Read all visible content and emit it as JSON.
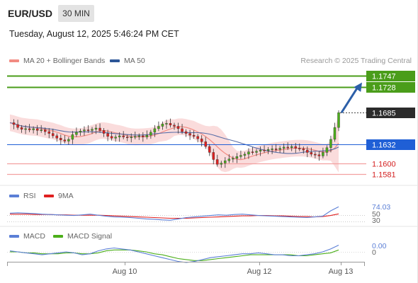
{
  "header": {
    "symbol": "EUR/USD",
    "interval": "30 MIN",
    "datetime": "Tuesday, August 12, 2025 5:46:24 PM CET",
    "copyright": "Research © 2025 Trading Central"
  },
  "legend": {
    "main": [
      {
        "label": "MA 20 + Bollinger Bands",
        "color": "#f28b82"
      },
      {
        "label": "MA 50",
        "color": "#2c5697"
      }
    ],
    "rsi": [
      {
        "label": "RSI",
        "color": "#5b7fd6"
      },
      {
        "label": "9MA",
        "color": "#e02020"
      }
    ],
    "macd": [
      {
        "label": "MACD",
        "color": "#5b7fd6"
      },
      {
        "label": "MACD Signal",
        "color": "#4caf1a"
      }
    ]
  },
  "colors": {
    "bullish": "#4caf1a",
    "bearish": "#e02020",
    "bollinger_fill": "#f9d6d6",
    "ma20": "#f28b82",
    "ma50": "#5a6fa8",
    "resistance": "#4a9d1a",
    "support": "#1f5fd6",
    "support_weak": "#f2a0a0",
    "arrow": "#2c5fa8"
  },
  "chart_data": [
    {
      "type": "candlestick",
      "title": "EUR/USD",
      "x_tick_labels": [
        "Aug 10",
        "Aug 12",
        "Aug 13"
      ],
      "ylim": [
        1.1572,
        1.1758
      ],
      "current_price": "1.1685",
      "levels": [
        {
          "value": 1.1747,
          "label": "1.1747",
          "kind": "resistance"
        },
        {
          "value": 1.1728,
          "label": "1.1728",
          "kind": "resistance"
        },
        {
          "value": 1.1632,
          "label": "1.1632",
          "kind": "pivot"
        },
        {
          "value": 1.16,
          "label": "1.1600",
          "kind": "support"
        },
        {
          "value": 1.1581,
          "label": "1.1581",
          "kind": "support"
        }
      ],
      "projection": {
        "from": 1.1685,
        "to": 1.1743
      },
      "close_series": [
        1.1668,
        1.1665,
        1.166,
        1.1657,
        1.1658,
        1.1656,
        1.1658,
        1.1655,
        1.1656,
        1.1653,
        1.165,
        1.1646,
        1.1642,
        1.1639,
        1.1637,
        1.164,
        1.1648,
        1.1652,
        1.1654,
        1.1656,
        1.1655,
        1.1657,
        1.1659,
        1.1655,
        1.165,
        1.1645,
        1.1642,
        1.1644,
        1.1646,
        1.1644,
        1.1643,
        1.1644,
        1.1645,
        1.1646,
        1.1644,
        1.1647,
        1.1652,
        1.1658,
        1.1662,
        1.1666,
        1.1667,
        1.1664,
        1.1662,
        1.1658,
        1.1653,
        1.165,
        1.1647,
        1.1645,
        1.1641,
        1.1636,
        1.1628,
        1.1618,
        1.1606,
        1.1598,
        1.16,
        1.1604,
        1.1607,
        1.1608,
        1.1611,
        1.1613,
        1.1615,
        1.1619,
        1.1618,
        1.162,
        1.1622,
        1.1621,
        1.1623,
        1.1624,
        1.1623,
        1.1625,
        1.1627,
        1.1626,
        1.1628,
        1.1625,
        1.1624,
        1.1622,
        1.1618,
        1.1615,
        1.1614,
        1.1612,
        1.1618,
        1.1626,
        1.164,
        1.166,
        1.1685
      ]
    },
    {
      "type": "line",
      "title": "RSI",
      "ylim": [
        20,
        85
      ],
      "tick_labels": [
        "74.03",
        "50",
        "30"
      ],
      "series": [
        {
          "name": "RSI",
          "values": [
            55,
            56,
            55,
            54,
            52,
            51,
            50,
            49,
            48,
            50,
            52,
            49,
            46,
            44,
            43,
            42,
            40,
            38,
            37,
            35,
            34,
            38,
            42,
            44,
            46,
            48,
            50,
            49,
            51,
            52,
            50,
            48,
            47,
            46,
            45,
            44,
            43,
            42,
            44,
            46,
            62,
            74
          ]
        },
        {
          "name": "9MA",
          "values": [
            52,
            52,
            52,
            51,
            51,
            51,
            50,
            50,
            49,
            49,
            49,
            49,
            48,
            47,
            46,
            45,
            44,
            43,
            42,
            41,
            40,
            40,
            40,
            41,
            42,
            43,
            44,
            45,
            46,
            47,
            47,
            48,
            48,
            47,
            47,
            46,
            45,
            45,
            44,
            45,
            48,
            53
          ]
        }
      ]
    },
    {
      "type": "line",
      "title": "MACD",
      "tick_labels": [
        "0.00",
        "0"
      ],
      "series": [
        {
          "name": "MACD",
          "values": [
            1,
            0,
            -1,
            -2,
            -3,
            -2,
            -1,
            0,
            -1,
            -3,
            -2,
            1,
            3,
            4,
            3,
            2,
            0,
            -2,
            -4,
            -6,
            -8,
            -10,
            -11,
            -10,
            -8,
            -6,
            -5,
            -4,
            -3,
            -2,
            -2,
            -1,
            -2,
            -3,
            -3,
            -4,
            -4,
            -3,
            -2,
            0,
            3,
            7
          ]
        },
        {
          "name": "MACD Signal",
          "values": [
            0,
            0,
            -1,
            -1,
            -2,
            -2,
            -2,
            -1,
            -1,
            -2,
            -2,
            -1,
            1,
            2,
            2,
            2,
            1,
            0,
            -2,
            -3,
            -5,
            -7,
            -8,
            -9,
            -9,
            -8,
            -7,
            -6,
            -5,
            -4,
            -3,
            -3,
            -3,
            -3,
            -3,
            -3,
            -4,
            -4,
            -3,
            -2,
            -1,
            2
          ]
        }
      ]
    }
  ]
}
